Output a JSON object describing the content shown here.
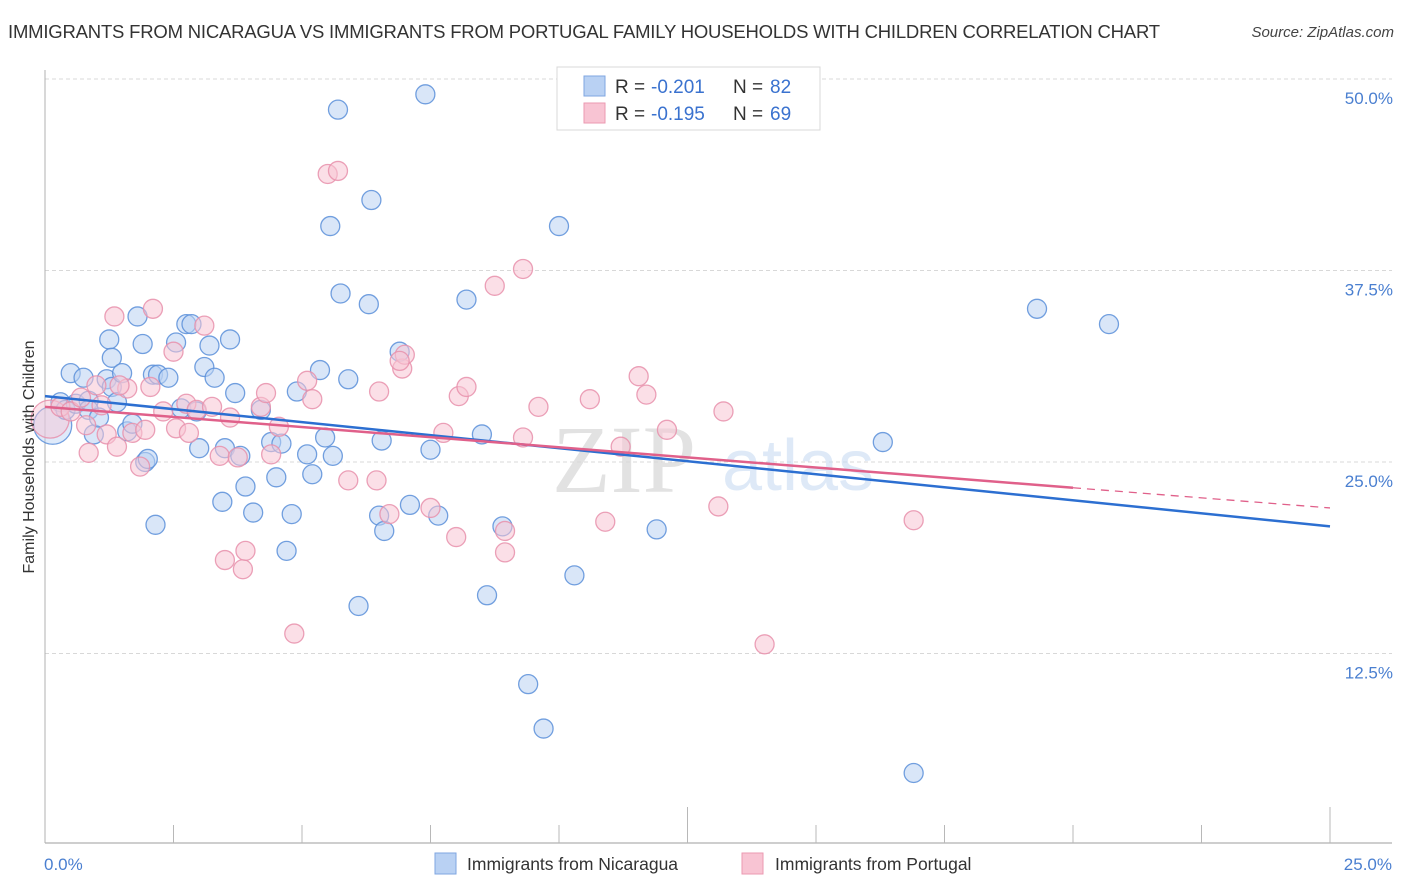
{
  "header": {
    "title": "IMMIGRANTS FROM NICARAGUA VS IMMIGRANTS FROM PORTUGAL FAMILY HOUSEHOLDS WITH CHILDREN CORRELATION CHART",
    "source": "Source: ZipAtlas.com"
  },
  "watermark": {
    "zip": "ZIP",
    "atlas": "atlas"
  },
  "legend": {
    "rows": [
      {
        "r_label": "R = ",
        "r_value": "-0.201",
        "n_label": "N = ",
        "n_value": "82"
      },
      {
        "r_label": "R = ",
        "r_value": "-0.195",
        "n_label": "N = ",
        "n_value": "69"
      }
    ]
  },
  "colors": {
    "nicaragua_fill": "#b9d1f3",
    "nicaragua_stroke": "#5b8fd9",
    "nicaragua_line": "#2c6fd1",
    "portugal_fill": "#f8c4d3",
    "portugal_stroke": "#e891ab",
    "portugal_line": "#e0608a",
    "axis_label": "#4a7fd0",
    "grid": "#d8d8d8"
  },
  "chart_data": {
    "type": "scatter",
    "title": "IMMIGRANTS FROM NICARAGUA VS IMMIGRANTS FROM PORTUGAL FAMILY HOUSEHOLDS WITH CHILDREN CORRELATION CHART",
    "xlabel": "",
    "ylabel": "Family Households with Children",
    "xlim": [
      0,
      25
    ],
    "ylim": [
      0,
      51.5
    ],
    "x_tick_labels": [
      "0.0%",
      "25.0%"
    ],
    "x_minor_ticks": [
      0,
      2.5,
      5,
      7.5,
      10,
      12.5,
      15,
      17.5,
      20,
      22.5,
      25
    ],
    "y_ticks": [
      12.5,
      25.0,
      37.5,
      50.0
    ],
    "y_tick_labels": [
      "12.5%",
      "25.0%",
      "37.5%",
      "50.0%"
    ],
    "grid": true,
    "legend_position": "top-center",
    "series": [
      {
        "name": "Immigrants from Nicaragua",
        "r": -0.201,
        "n": 82,
        "trend": {
          "x": [
            0,
            25
          ],
          "y": [
            29.3,
            20.8
          ],
          "dashed_from": null
        },
        "points": [
          [
            0.15,
            27.4,
            "large"
          ],
          [
            0.3,
            28.9
          ],
          [
            0.4,
            28.4
          ],
          [
            0.6,
            28.8
          ],
          [
            0.85,
            29.0
          ],
          [
            0.5,
            30.8
          ],
          [
            0.75,
            30.5
          ],
          [
            0.85,
            28.4
          ],
          [
            0.95,
            26.8
          ],
          [
            1.05,
            27.9
          ],
          [
            1.2,
            30.4
          ],
          [
            1.3,
            29.9
          ],
          [
            1.4,
            28.9
          ],
          [
            1.25,
            33.0
          ],
          [
            1.3,
            31.8
          ],
          [
            1.5,
            30.8
          ],
          [
            1.6,
            27.0
          ],
          [
            1.7,
            27.5
          ],
          [
            1.8,
            34.5
          ],
          [
            1.9,
            32.7
          ],
          [
            1.95,
            25.0
          ],
          [
            2.0,
            25.2
          ],
          [
            2.1,
            30.7
          ],
          [
            2.15,
            20.9
          ],
          [
            2.2,
            30.7
          ],
          [
            2.4,
            30.5
          ],
          [
            2.55,
            32.8
          ],
          [
            2.65,
            28.5
          ],
          [
            2.75,
            34.0
          ],
          [
            2.85,
            34.0
          ],
          [
            2.95,
            28.3
          ],
          [
            3.0,
            25.9
          ],
          [
            3.1,
            31.2
          ],
          [
            3.2,
            32.6
          ],
          [
            3.3,
            30.5
          ],
          [
            3.45,
            22.4
          ],
          [
            3.5,
            25.9
          ],
          [
            3.6,
            33.0
          ],
          [
            3.7,
            29.5
          ],
          [
            3.8,
            25.4
          ],
          [
            3.9,
            23.4
          ],
          [
            4.05,
            21.7
          ],
          [
            4.2,
            28.4
          ],
          [
            4.4,
            26.3
          ],
          [
            4.5,
            24.0
          ],
          [
            4.6,
            26.2
          ],
          [
            4.7,
            19.2
          ],
          [
            4.8,
            21.6
          ],
          [
            4.9,
            29.6
          ],
          [
            5.1,
            25.5
          ],
          [
            5.2,
            24.2
          ],
          [
            5.35,
            31.0
          ],
          [
            5.45,
            26.6
          ],
          [
            5.6,
            25.4
          ],
          [
            5.55,
            40.4
          ],
          [
            5.7,
            48.0
          ],
          [
            5.75,
            36.0
          ],
          [
            5.9,
            30.4
          ],
          [
            6.1,
            15.6
          ],
          [
            6.3,
            35.3
          ],
          [
            6.35,
            42.1
          ],
          [
            6.5,
            21.5
          ],
          [
            6.55,
            26.4
          ],
          [
            6.6,
            20.5
          ],
          [
            6.9,
            32.2
          ],
          [
            7.1,
            22.2
          ],
          [
            7.5,
            25.8
          ],
          [
            7.65,
            21.5
          ],
          [
            7.4,
            49.0
          ],
          [
            8.2,
            35.6
          ],
          [
            8.5,
            26.8
          ],
          [
            8.6,
            16.3
          ],
          [
            8.9,
            20.8
          ],
          [
            9.4,
            10.5
          ],
          [
            9.7,
            7.6
          ],
          [
            10.0,
            40.4
          ],
          [
            10.3,
            17.6
          ],
          [
            11.9,
            20.6
          ],
          [
            16.3,
            26.3
          ],
          [
            16.9,
            4.7
          ],
          [
            19.3,
            35.0
          ],
          [
            20.7,
            34.0
          ]
        ]
      },
      {
        "name": "Immigrants from Portugal",
        "r": -0.195,
        "n": 69,
        "trend": {
          "x": [
            0,
            25
          ],
          "y": [
            28.6,
            22.0
          ],
          "dashed_from": 20.0
        },
        "points": [
          [
            0.1,
            27.8,
            "large"
          ],
          [
            0.3,
            28.6
          ],
          [
            0.5,
            28.3
          ],
          [
            0.7,
            29.2
          ],
          [
            0.8,
            27.4
          ],
          [
            0.85,
            25.6
          ],
          [
            1.0,
            30.0
          ],
          [
            1.1,
            28.7
          ],
          [
            1.2,
            26.8
          ],
          [
            1.4,
            26.0
          ],
          [
            1.35,
            34.5
          ],
          [
            1.6,
            29.8
          ],
          [
            1.7,
            26.9
          ],
          [
            1.85,
            24.7
          ],
          [
            1.95,
            27.1
          ],
          [
            2.05,
            29.9
          ],
          [
            2.1,
            35.0
          ],
          [
            2.3,
            28.3
          ],
          [
            2.5,
            32.2
          ],
          [
            2.55,
            27.2
          ],
          [
            2.75,
            28.8
          ],
          [
            2.8,
            26.9
          ],
          [
            2.95,
            28.4
          ],
          [
            3.1,
            33.9
          ],
          [
            3.25,
            28.6
          ],
          [
            3.4,
            25.4
          ],
          [
            3.5,
            18.6
          ],
          [
            3.6,
            27.9
          ],
          [
            3.75,
            25.3
          ],
          [
            3.85,
            18.0
          ],
          [
            3.9,
            19.2
          ],
          [
            4.2,
            28.6
          ],
          [
            4.3,
            29.5
          ],
          [
            4.4,
            25.5
          ],
          [
            4.55,
            27.3
          ],
          [
            4.85,
            13.8
          ],
          [
            5.1,
            30.3
          ],
          [
            5.2,
            29.1
          ],
          [
            5.5,
            43.8
          ],
          [
            5.7,
            44.0
          ],
          [
            5.9,
            23.8
          ],
          [
            6.45,
            23.8
          ],
          [
            6.5,
            29.6
          ],
          [
            6.7,
            21.6
          ],
          [
            6.95,
            31.1
          ],
          [
            7.0,
            32.0
          ],
          [
            7.5,
            22.0
          ],
          [
            7.75,
            26.9
          ],
          [
            8.0,
            20.1
          ],
          [
            8.05,
            29.3
          ],
          [
            8.2,
            29.9
          ],
          [
            8.75,
            36.5
          ],
          [
            8.95,
            20.5
          ],
          [
            8.95,
            19.1
          ],
          [
            9.3,
            37.6
          ],
          [
            9.3,
            26.6
          ],
          [
            9.6,
            28.6
          ],
          [
            10.6,
            29.1
          ],
          [
            10.9,
            21.1
          ],
          [
            11.2,
            26.0
          ],
          [
            11.55,
            30.6
          ],
          [
            11.7,
            29.4
          ],
          [
            12.1,
            27.1
          ],
          [
            13.1,
            22.1
          ],
          [
            13.2,
            28.3
          ],
          [
            14.0,
            13.1
          ],
          [
            16.9,
            21.2
          ],
          [
            6.9,
            31.6
          ],
          [
            1.45,
            30.0
          ]
        ]
      }
    ]
  },
  "bottom_legend": [
    {
      "label": "Immigrants from Nicaragua"
    },
    {
      "label": "Immigrants from Portugal"
    }
  ]
}
